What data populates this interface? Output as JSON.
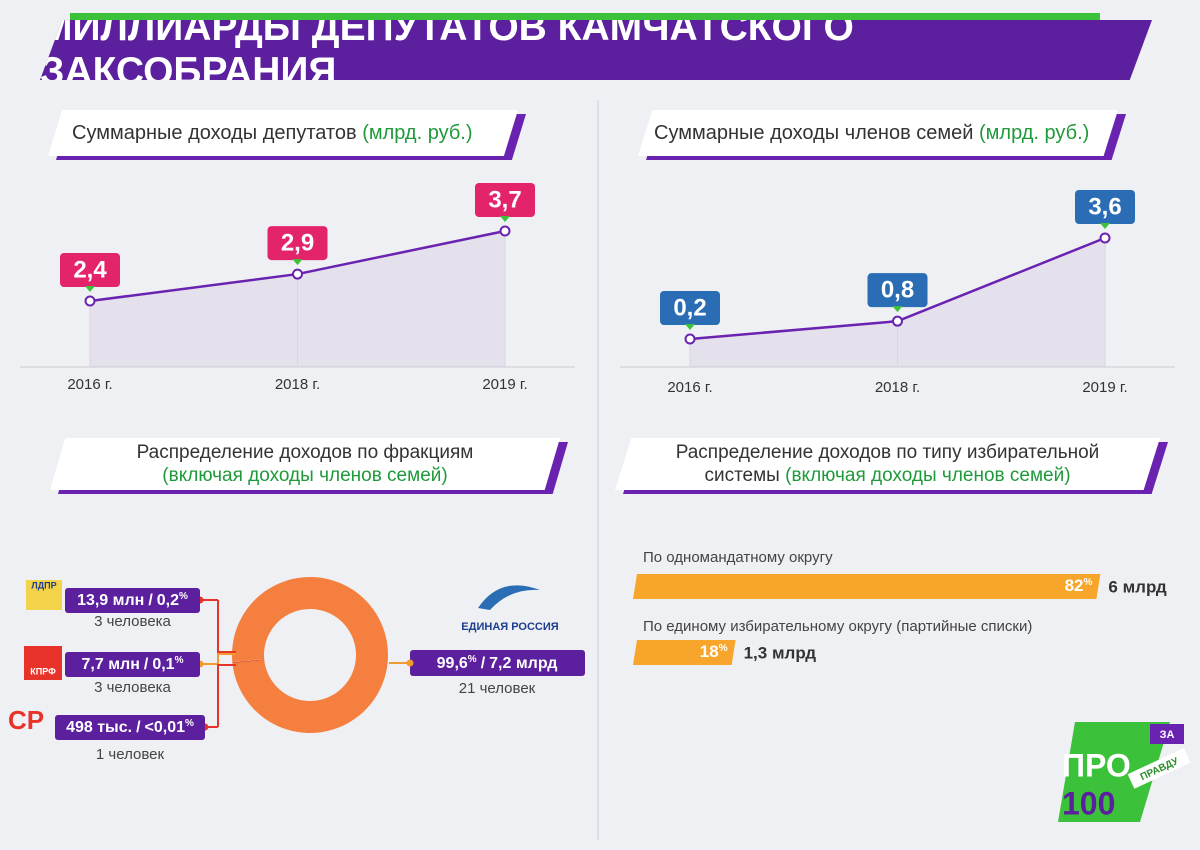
{
  "title": "МИЛЛИАРДЫ ДЕПУТАТОВ КАМЧАТСКОГО ЗАКСОБРАНИЯ",
  "chart_data": [
    {
      "type": "line",
      "title": "Суммарные доходы депутатов",
      "unit": "(млрд. руб.)",
      "categories": [
        "2016 г.",
        "2018 г.",
        "2019 г."
      ],
      "values": [
        2.4,
        2.9,
        3.7
      ],
      "value_labels": [
        "2,4",
        "2,9",
        "3,7"
      ],
      "color": "#6a22b0",
      "label_color": "#e3246b"
    },
    {
      "type": "line",
      "title": "Суммарные доходы членов семей",
      "unit": "(млрд. руб.)",
      "categories": [
        "2016 г.",
        "2018 г.",
        "2019 г."
      ],
      "values": [
        0.2,
        0.8,
        3.6
      ],
      "value_labels": [
        "0,2",
        "0,8",
        "3,6"
      ],
      "color": "#6a22b0",
      "label_color": "#2a6db5"
    },
    {
      "type": "pie",
      "title": "Распределение доходов по фракциям",
      "subtitle": "(включая доходы членов семей)",
      "categories": [
        "ЕДИНАЯ РОССИЯ",
        "ЛДПР",
        "КПРФ",
        "СР"
      ],
      "values": [
        99.6,
        0.2,
        0.1,
        0.009
      ],
      "value_labels": [
        "99,6",
        "0,2",
        "0,1",
        "<0,01"
      ],
      "amounts": [
        "7,2 млрд",
        "13,9 млн",
        "7,7 млн",
        "498 тыс."
      ],
      "people": [
        "21 человек",
        "3 человека",
        "3 человека",
        "1 человек"
      ],
      "colors": [
        "#f47f3e",
        "#e8332a",
        "#f29a2e",
        "#e8332a"
      ],
      "percent_sign": "%",
      "separator": "/"
    },
    {
      "type": "bar",
      "title": "Распределение доходов по типу избирательной системы",
      "subtitle": "(включая доходы членов семей)",
      "categories": [
        "По одномандатному округу",
        "По единому избирательному округу (партийные списки)"
      ],
      "values": [
        82,
        18
      ],
      "value_labels": [
        "82",
        "18"
      ],
      "amounts": [
        "6 млрд",
        "1,3 млрд"
      ],
      "color": "#f7a62b",
      "percent_sign": "%"
    }
  ],
  "logo": {
    "top": "ЗА",
    "main": "ПРО",
    "number": "100",
    "word": "ПРАВДУ"
  }
}
